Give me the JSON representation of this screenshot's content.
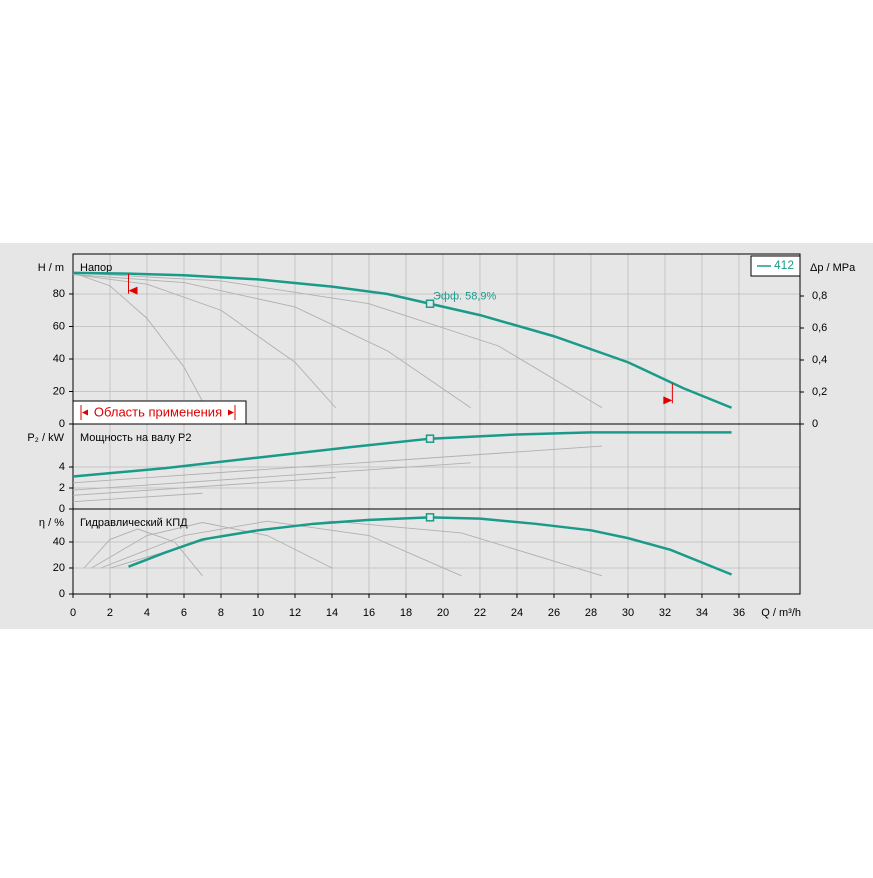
{
  "chart_data": [
    {
      "type": "line",
      "title": "Напор",
      "ylabel": "H / m",
      "y2label": "Δp / MPa",
      "ylim": [
        0,
        104.6
      ],
      "yticks": [
        0,
        20,
        40,
        60,
        80
      ],
      "y2lim": [
        0,
        1.0625
      ],
      "y2ticks": [
        0,
        {
          "value": 0.2,
          "label": "0,2"
        },
        {
          "value": 0.4,
          "label": "0,4"
        },
        {
          "value": 0.6,
          "label": "0,6"
        },
        {
          "value": 0.8,
          "label": "0,8"
        }
      ],
      "series": [
        {
          "name": "412",
          "color": "#1a9b8a",
          "x": [
            0,
            3,
            6,
            10,
            14,
            17,
            19.3,
            22,
            26,
            30,
            33,
            35.6
          ],
          "values": [
            93,
            92.5,
            91.5,
            89,
            84.5,
            80,
            74,
            67,
            54,
            38,
            22,
            10
          ]
        },
        {
          "color": "#b0b0b0",
          "x": [
            0,
            2,
            4,
            6,
            7
          ],
          "values": [
            93,
            85,
            65,
            35,
            14
          ]
        },
        {
          "color": "#b0b0b0",
          "x": [
            0,
            4,
            8,
            12,
            14.2
          ],
          "values": [
            92,
            86,
            70,
            38,
            10
          ]
        },
        {
          "color": "#b0b0b0",
          "x": [
            0,
            6,
            12,
            17,
            21.5
          ],
          "values": [
            92,
            87,
            72,
            45,
            10
          ]
        },
        {
          "color": "#b0b0b0",
          "x": [
            0,
            8,
            16,
            23,
            28.6
          ],
          "values": [
            93,
            88,
            74,
            48,
            10
          ]
        }
      ],
      "duty_point": {
        "x": 19.3,
        "y": 74,
        "label": "Эфф.  58,9%"
      },
      "application_range": {
        "label": "Область применения",
        "x": [
          3,
          32.4
        ],
        "y": [
          92.5,
          25
        ],
        "color": "#e00000"
      },
      "legend": "top-right"
    },
    {
      "type": "line",
      "title": "Мощность на валу P2",
      "ylabel": "P₂ / kW",
      "ylim": [
        0,
        8.1
      ],
      "yticks": [
        0,
        2,
        4
      ],
      "series": [
        {
          "color": "#1a9b8a",
          "x": [
            0,
            5,
            10,
            15,
            19.3,
            24,
            28,
            35.6
          ],
          "values": [
            3.1,
            3.9,
            4.9,
            5.9,
            6.7,
            7.1,
            7.3,
            7.3
          ]
        },
        {
          "color": "#b0b0b0",
          "x": [
            0,
            7
          ],
          "values": [
            0.7,
            1.5
          ]
        },
        {
          "color": "#b0b0b0",
          "x": [
            0,
            14.2
          ],
          "values": [
            1.3,
            3.0
          ]
        },
        {
          "color": "#b0b0b0",
          "x": [
            0,
            21.5
          ],
          "values": [
            1.8,
            4.4
          ]
        },
        {
          "color": "#b0b0b0",
          "x": [
            0,
            28.6
          ],
          "values": [
            2.5,
            6.0
          ]
        }
      ],
      "duty_point": {
        "x": 19.3,
        "y": 6.7
      }
    },
    {
      "type": "line",
      "title": "Гидравлический КПД",
      "ylabel": "η / %",
      "xlabel": "Q / m³/h",
      "xlim": [
        0,
        39.3
      ],
      "xticks": [
        0,
        2,
        4,
        6,
        8,
        10,
        12,
        14,
        16,
        18,
        20,
        22,
        24,
        26,
        28,
        30,
        32,
        34,
        36
      ],
      "ylim": [
        0,
        65.4
      ],
      "yticks": [
        0,
        20,
        40
      ],
      "series": [
        {
          "color": "#1a9b8a",
          "x": [
            3,
            5,
            7,
            10,
            13,
            16,
            19.3,
            22,
            25,
            28,
            30,
            32.3,
            35.6
          ],
          "values": [
            21,
            32,
            42,
            49,
            54,
            57,
            59,
            58,
            54,
            49,
            43,
            34,
            15
          ]
        },
        {
          "color": "#b0b0b0",
          "x": [
            0.6,
            2,
            3.5,
            5.5,
            7
          ],
          "values": [
            20,
            42,
            50,
            40,
            14
          ]
        },
        {
          "color": "#b0b0b0",
          "x": [
            1,
            4,
            7,
            10.5,
            14
          ],
          "values": [
            20,
            45,
            55,
            45,
            20
          ]
        },
        {
          "color": "#b0b0b0",
          "x": [
            1.5,
            6,
            10.5,
            16,
            21
          ],
          "values": [
            20,
            45,
            56,
            45,
            14
          ]
        },
        {
          "color": "#b0b0b0",
          "x": [
            2,
            8,
            14,
            21,
            28.6
          ],
          "values": [
            20,
            45,
            56,
            47,
            14
          ]
        }
      ],
      "duty_point": {
        "x": 19.3,
        "y": 59
      }
    }
  ]
}
